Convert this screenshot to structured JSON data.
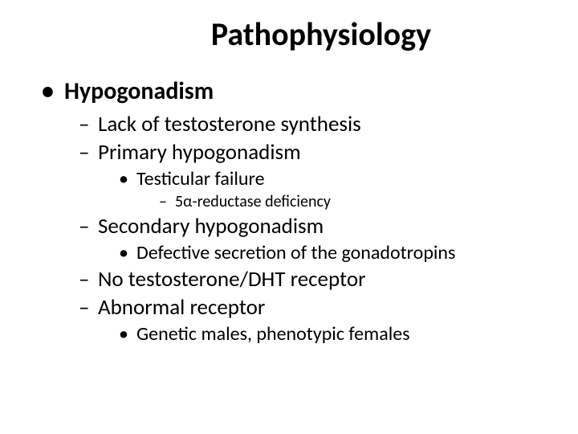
{
  "title": "Pathophysiology",
  "bullets": {
    "b1": "Hypogonadism",
    "b2a": "Lack of testosterone synthesis",
    "b2b": "Primary hypogonadism",
    "b3a": "Testicular failure",
    "b4a": "5α-reductase deficiency",
    "b2c": "Secondary hypogonadism",
    "b3b": "Defective secretion of the gonadotropins",
    "b2d": "No testosterone/DHT receptor",
    "b2e": "Abnormal receptor",
    "b3c": "Genetic males, phenotypic females"
  },
  "glyphs": {
    "disc": "•",
    "dash": "–"
  },
  "style": {
    "background": "#ffffff",
    "text_color": "#000000",
    "title_fontsize": 40,
    "l1_fontsize": 30,
    "l2_fontsize": 27,
    "l3_fontsize": 24,
    "l4_fontsize": 20,
    "font_family": "Calibri"
  }
}
